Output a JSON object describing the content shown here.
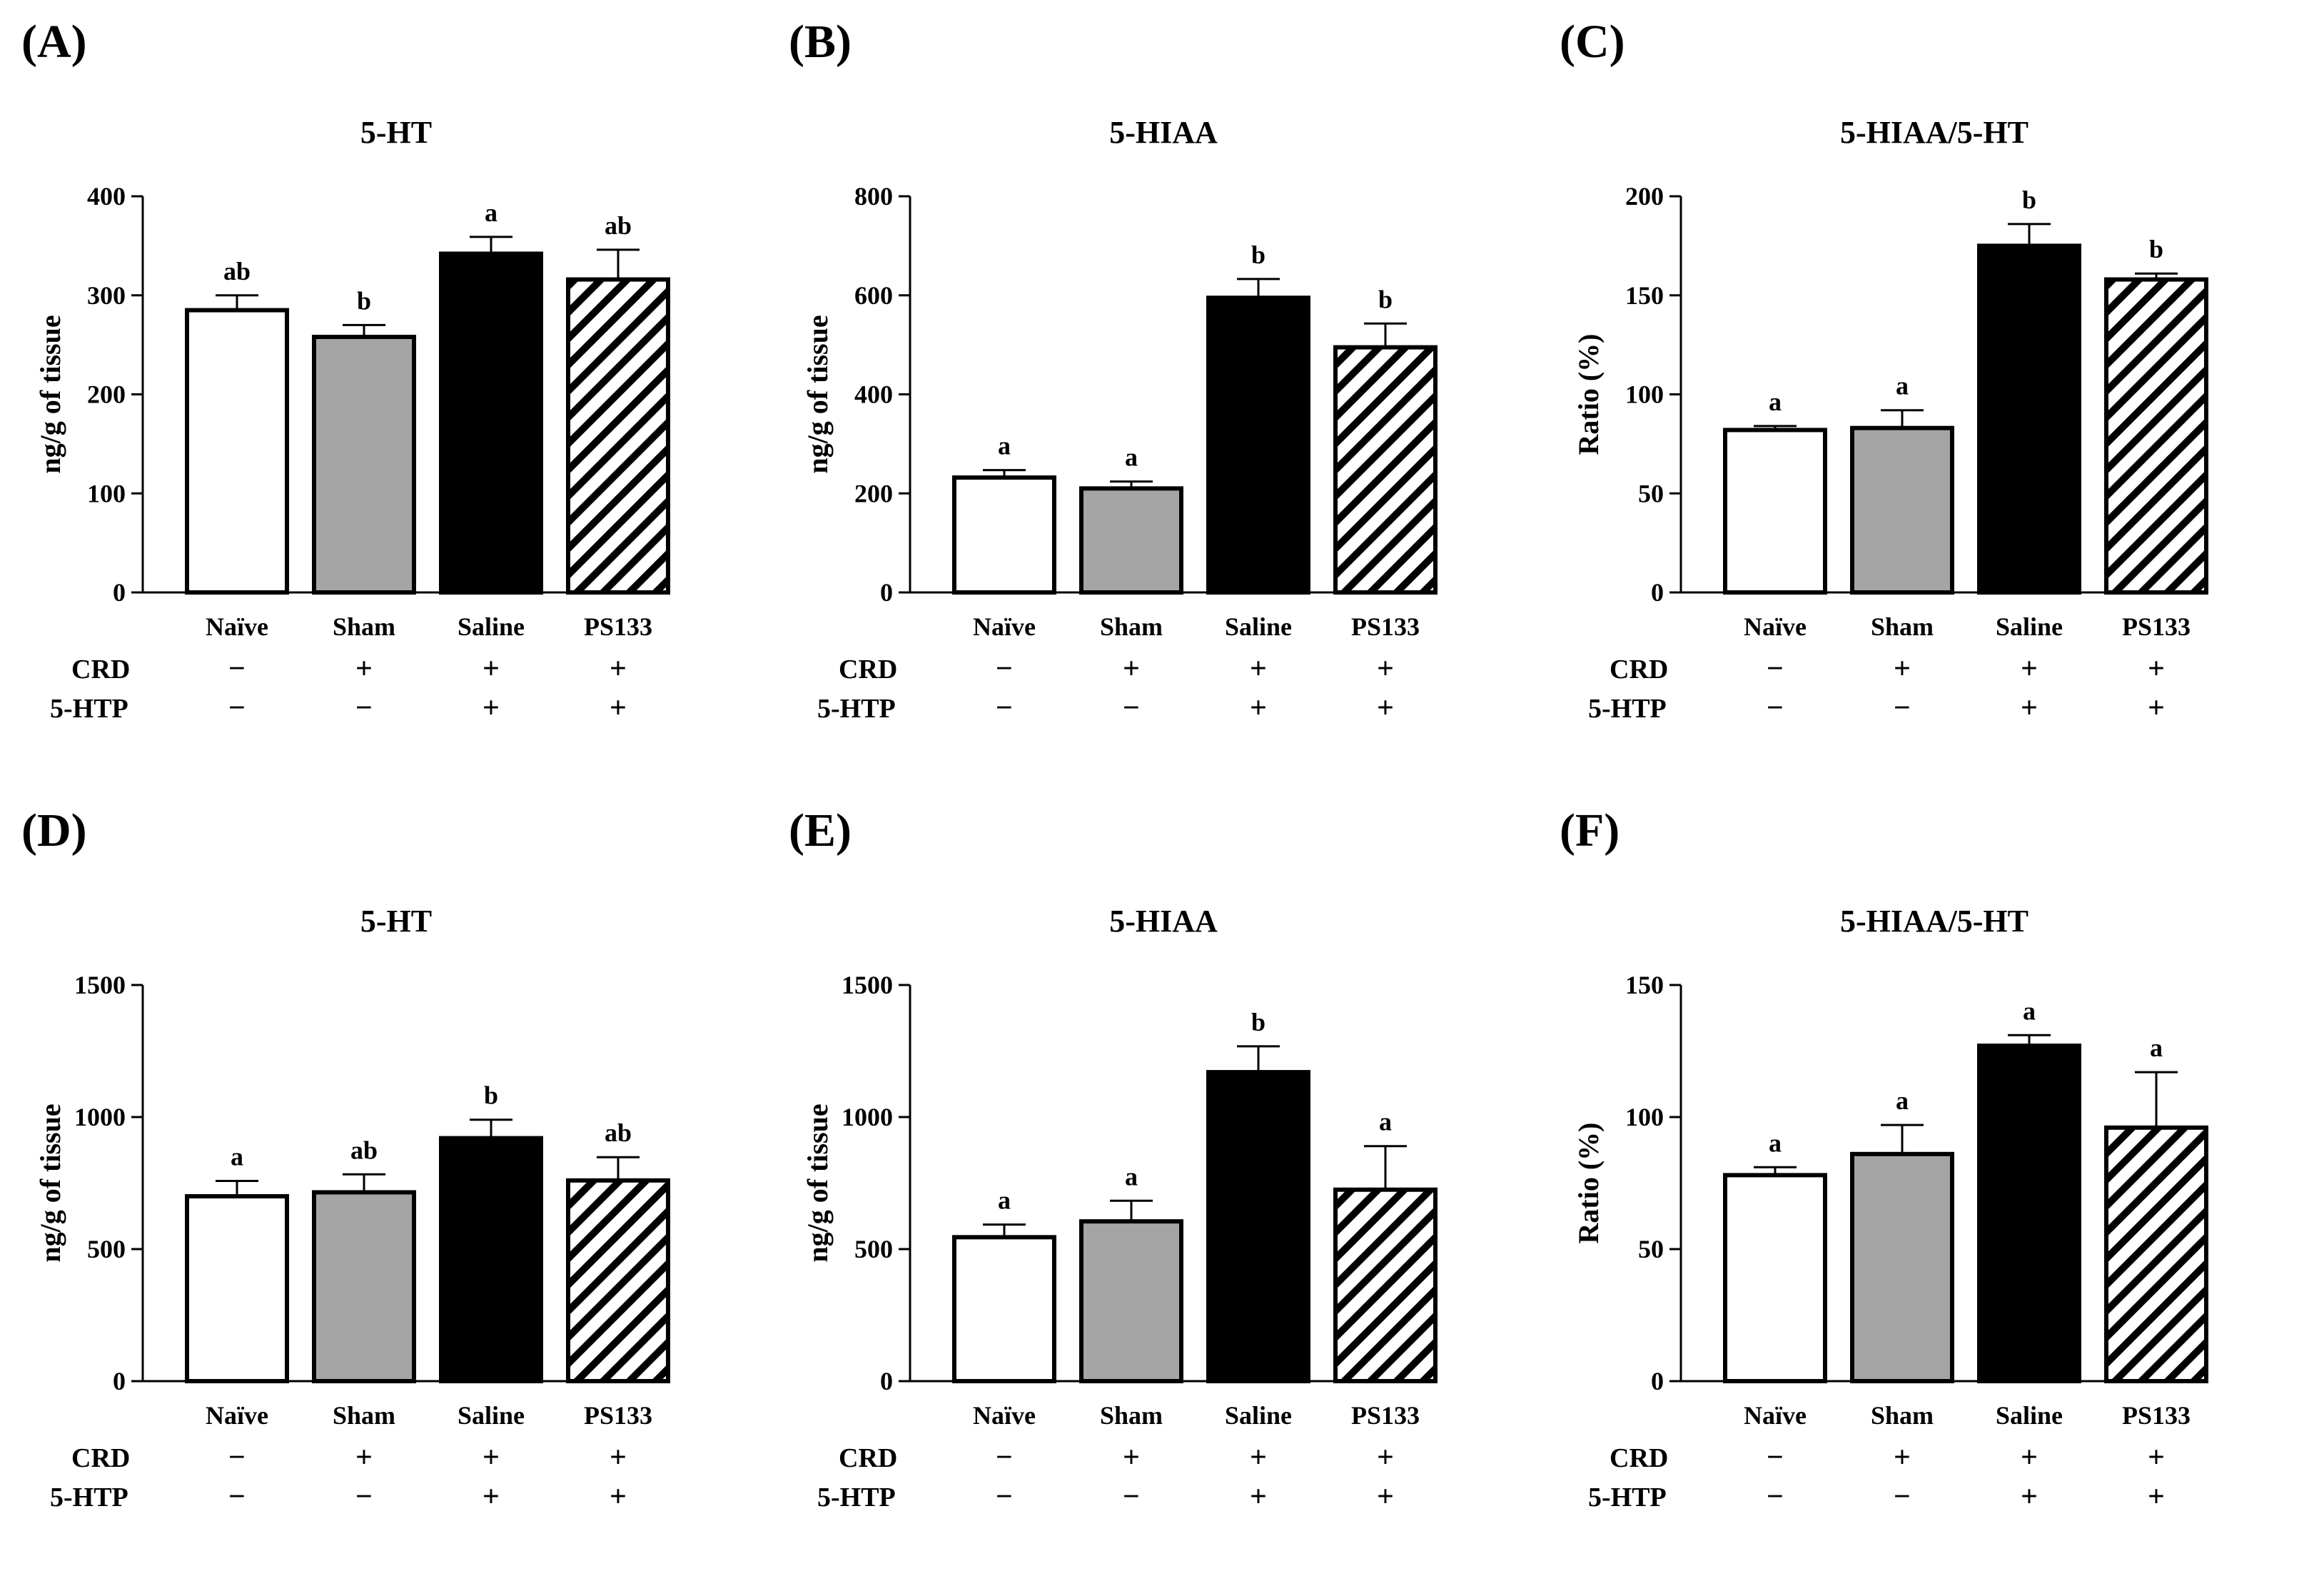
{
  "chart_data": [
    {
      "type": "bar",
      "panel_label": "(A)",
      "title": "5-HT",
      "ylabel": "ng/g of tissue",
      "ylim": [
        0,
        400
      ],
      "yticks": [
        "0",
        "100",
        "200",
        "300",
        "400"
      ],
      "categories": [
        "Naïve",
        "Sham",
        "Saline",
        "PS133"
      ],
      "values": [
        285,
        258,
        342,
        316
      ],
      "errors": [
        15,
        12,
        17,
        30
      ],
      "significance": [
        "ab",
        "b",
        "a",
        "ab"
      ],
      "rows": [
        {
          "label": "CRD",
          "marks": [
            "−",
            "+",
            "+",
            "+"
          ]
        },
        {
          "label": "5-HTP",
          "marks": [
            "−",
            "−",
            "+",
            "+"
          ]
        }
      ]
    },
    {
      "type": "bar",
      "panel_label": "(B)",
      "title": "5-HIAA",
      "ylabel": "ng/g of tissue",
      "ylim": [
        0,
        800
      ],
      "yticks": [
        "0",
        "200",
        "400",
        "600",
        "800"
      ],
      "categories": [
        "Naïve",
        "Sham",
        "Saline",
        "PS133"
      ],
      "values": [
        232,
        210,
        595,
        495
      ],
      "errors": [
        15,
        14,
        38,
        48
      ],
      "significance": [
        "a",
        "a",
        "b",
        "b"
      ],
      "rows": [
        {
          "label": "CRD",
          "marks": [
            "−",
            "+",
            "+",
            "+"
          ]
        },
        {
          "label": "5-HTP",
          "marks": [
            "−",
            "−",
            "+",
            "+"
          ]
        }
      ]
    },
    {
      "type": "bar",
      "panel_label": "(C)",
      "title": "5-HIAA/5-HT",
      "ylabel": "Ratio (%)",
      "ylim": [
        0,
        200
      ],
      "yticks": [
        "0",
        "50",
        "100",
        "150",
        "200"
      ],
      "categories": [
        "Naïve",
        "Sham",
        "Saline",
        "PS133"
      ],
      "values": [
        82,
        83,
        175,
        158
      ],
      "errors": [
        2,
        9,
        11,
        3
      ],
      "significance": [
        "a",
        "a",
        "b",
        "b"
      ],
      "rows": [
        {
          "label": "CRD",
          "marks": [
            "−",
            "+",
            "+",
            "+"
          ]
        },
        {
          "label": "5-HTP",
          "marks": [
            "−",
            "−",
            "+",
            "+"
          ]
        }
      ]
    },
    {
      "type": "bar",
      "panel_label": "(D)",
      "title": "5-HT",
      "ylabel": "ng/g of tissue",
      "ylim": [
        0,
        1500
      ],
      "yticks": [
        "0",
        "500",
        "1000",
        "1500"
      ],
      "categories": [
        "Naïve",
        "Sham",
        "Saline",
        "PS133"
      ],
      "values": [
        700,
        715,
        920,
        760
      ],
      "errors": [
        58,
        68,
        70,
        88
      ],
      "significance": [
        "a",
        "ab",
        "b",
        "ab"
      ],
      "rows": [
        {
          "label": "CRD",
          "marks": [
            "−",
            "+",
            "+",
            "+"
          ]
        },
        {
          "label": "5-HTP",
          "marks": [
            "−",
            "−",
            "+",
            "+"
          ]
        }
      ]
    },
    {
      "type": "bar",
      "panel_label": "(E)",
      "title": "5-HIAA",
      "ylabel": "ng/g of tissue",
      "ylim": [
        0,
        1500
      ],
      "yticks": [
        "0",
        "500",
        "1000",
        "1500"
      ],
      "categories": [
        "Naïve",
        "Sham",
        "Saline",
        "PS133"
      ],
      "values": [
        545,
        605,
        1170,
        725
      ],
      "errors": [
        48,
        78,
        98,
        165
      ],
      "significance": [
        "a",
        "a",
        "b",
        "a"
      ],
      "rows": [
        {
          "label": "CRD",
          "marks": [
            "−",
            "+",
            "+",
            "+"
          ]
        },
        {
          "label": "5-HTP",
          "marks": [
            "−",
            "−",
            "+",
            "+"
          ]
        }
      ]
    },
    {
      "type": "bar",
      "panel_label": "(F)",
      "title": "5-HIAA/5-HT",
      "ylabel": "Ratio (%)",
      "ylim": [
        0,
        150
      ],
      "yticks": [
        "0",
        "50",
        "100",
        "150"
      ],
      "categories": [
        "Naïve",
        "Sham",
        "Saline",
        "PS133"
      ],
      "values": [
        78,
        86,
        127,
        96
      ],
      "errors": [
        3,
        11,
        4,
        21
      ],
      "significance": [
        "a",
        "a",
        "a",
        "a"
      ],
      "rows": [
        {
          "label": "CRD",
          "marks": [
            "−",
            "+",
            "+",
            "+"
          ]
        },
        {
          "label": "5-HTP",
          "marks": [
            "−",
            "−",
            "+",
            "+"
          ]
        }
      ]
    }
  ],
  "bar_styles": [
    {
      "name": "white",
      "fill": "#ffffff"
    },
    {
      "name": "gray",
      "fill": "#a5a5a5"
    },
    {
      "name": "black",
      "fill": "#000000"
    },
    {
      "name": "hatched",
      "fill": "hatch"
    }
  ],
  "colors": {
    "axis": "#000000",
    "background": "#ffffff",
    "gray_bar": "#a5a5a5"
  }
}
